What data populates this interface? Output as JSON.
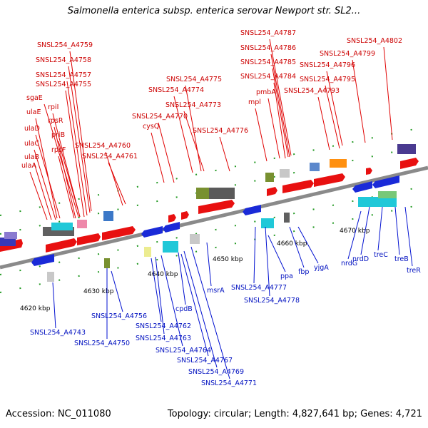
{
  "title": "Salmonella enterica subsp. enterica serovar Newport str. SL2...",
  "footer": {
    "accession": "Accession: NC_011080",
    "summary": "Topology: circular; Length: 4,827,641 bp; Genes: 4,721"
  },
  "ticks": [
    "4620 kbp",
    "4630 kbp",
    "4640 kbp",
    "4650 kbp",
    "4660 kbp",
    "4670 kbp"
  ],
  "genes_forward": [
    "SNSL254_A4759",
    "SNSL254_A4758",
    "SNSL254_A4757",
    "SNSL254_A4755",
    "sgaE",
    "rpiI",
    "ulaE",
    "rpsR",
    "ulaD",
    "priB",
    "ulaC",
    "rpsF",
    "ulaB",
    "ulaA",
    "SNSL254_A4760",
    "SNSL254_A4761",
    "SNSL254_A4775",
    "SNSL254_A4774",
    "SNSL254_A4773",
    "SNSL254_A4770",
    "cysQ",
    "SNSL254_A4776",
    "SNSL254_A4787",
    "SNSL254_A4786",
    "SNSL254_A4785",
    "SNSL254_A4784",
    "pmbA",
    "mpl",
    "SNSL254_A4802",
    "SNSL254_A4799",
    "SNSL254_A4796",
    "SNSL254_A4795",
    "SNSL254_A4793"
  ],
  "genes_reverse": [
    "SNSL254_A4743",
    "SNSL254_A4750",
    "SNSL254_A4756",
    "SNSL254_A4762",
    "SNSL254_A4763",
    "SNSL254_A4764",
    "SNSL254_A4767",
    "SNSL254_A4769",
    "SNSL254_A4771",
    "cpdB",
    "msrA",
    "SNSL254_A4777",
    "SNSL254_A4778",
    "ppa",
    "fbp",
    "yjgA",
    "nrdG",
    "nrdD",
    "treC",
    "treB",
    "treR"
  ]
}
